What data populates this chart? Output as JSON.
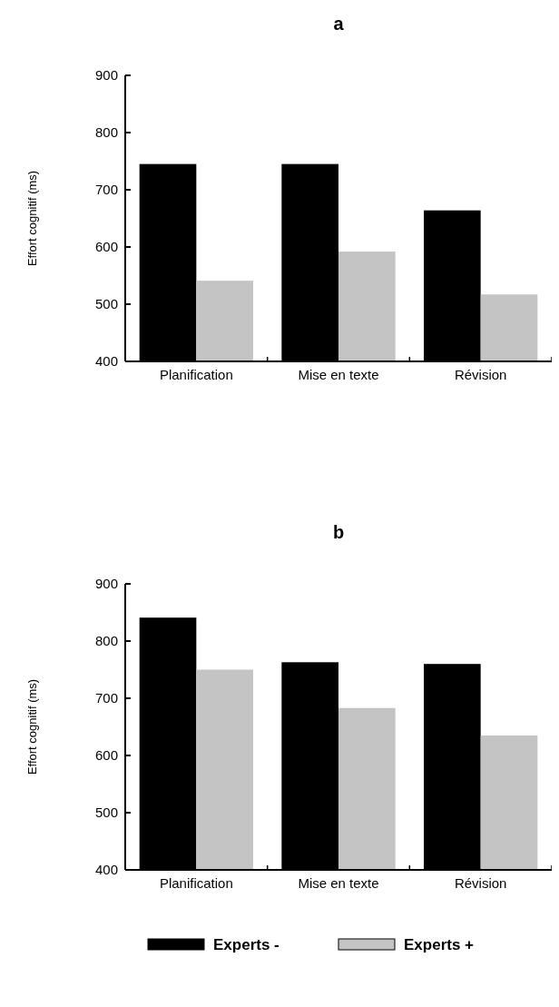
{
  "chart_data": [
    {
      "type": "bar",
      "title": "a",
      "ylabel": "Effort cognitif (ms)",
      "categories": [
        "Planification",
        "Mise en texte",
        "Révision"
      ],
      "series": [
        {
          "color": "#000000",
          "values": [
            745,
            745,
            664
          ]
        },
        {
          "color": "#c4c4c4",
          "values": [
            541,
            592,
            517
          ]
        }
      ],
      "ylim": [
        400,
        900
      ],
      "yticks": [
        400,
        500,
        600,
        700,
        800,
        900
      ],
      "legend": false
    },
    {
      "type": "bar",
      "title": "b",
      "ylabel": "Effort cognitif (ms)",
      "categories": [
        "Planification",
        "Mise en texte",
        "Révision"
      ],
      "series": [
        {
          "name": "Experts -",
          "color": "#000000",
          "values": [
            841,
            763,
            760
          ]
        },
        {
          "name": "Experts +",
          "color": "#c4c4c4",
          "values": [
            750,
            683,
            635
          ]
        }
      ],
      "ylim": [
        400,
        900
      ],
      "yticks": [
        400,
        500,
        600,
        700,
        800,
        900
      ],
      "legend": "bottom"
    }
  ]
}
